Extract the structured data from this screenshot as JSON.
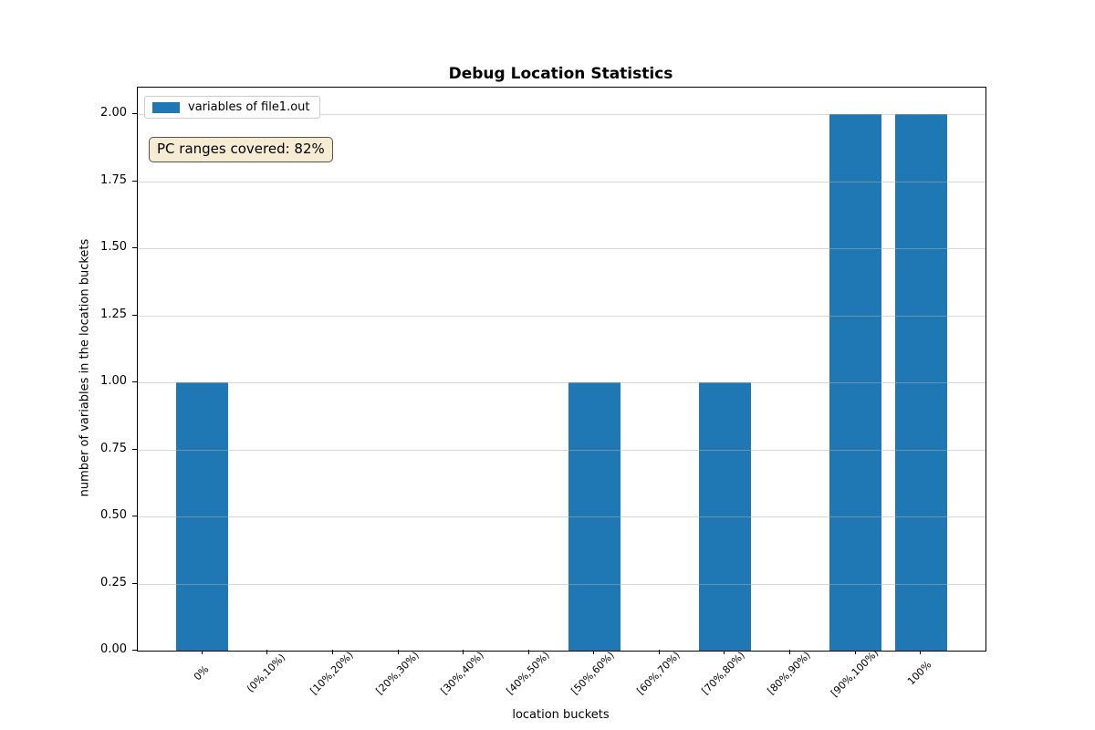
{
  "title": "Debug Location Statistics",
  "legend": {
    "label": "variables of file1.out",
    "swatch_color": "#1f77b4",
    "swatch_icon": "legend-color-swatch"
  },
  "annotation": {
    "text": "PC ranges covered: 82%",
    "bg_color": "#f6ecd3",
    "border_color": "#54524a"
  },
  "chart_data": {
    "type": "bar",
    "title": "Debug Location Statistics",
    "xlabel": "location buckets",
    "ylabel": "number of variables in the location buckets",
    "categories": [
      "0%",
      "(0%,10%)",
      "[10%,20%)",
      "[20%,30%)",
      "[30%,40%)",
      "[40%,50%)",
      "[50%,60%)",
      "[60%,70%)",
      "[70%,80%)",
      "[80%,90%)",
      "[90%,100%)",
      "100%"
    ],
    "series": [
      {
        "name": "variables of file1.out",
        "values": [
          1,
          0,
          0,
          0,
          0,
          0,
          1,
          0,
          1,
          0,
          2,
          2
        ]
      }
    ],
    "bar_color": "#1f77b4",
    "bar_width_fraction": 0.8,
    "ylim": [
      0,
      2.1
    ],
    "yticks": [
      0.0,
      0.25,
      0.5,
      0.75,
      1.0,
      1.25,
      1.5,
      1.75,
      2.0
    ],
    "ytick_label_format": "2dp",
    "grid": "horizontal",
    "grid_color": "#b0b0b0",
    "xtick_rotation_deg": 45,
    "legend_position": "upper left",
    "annotation_text": "PC ranges covered: 82%"
  }
}
